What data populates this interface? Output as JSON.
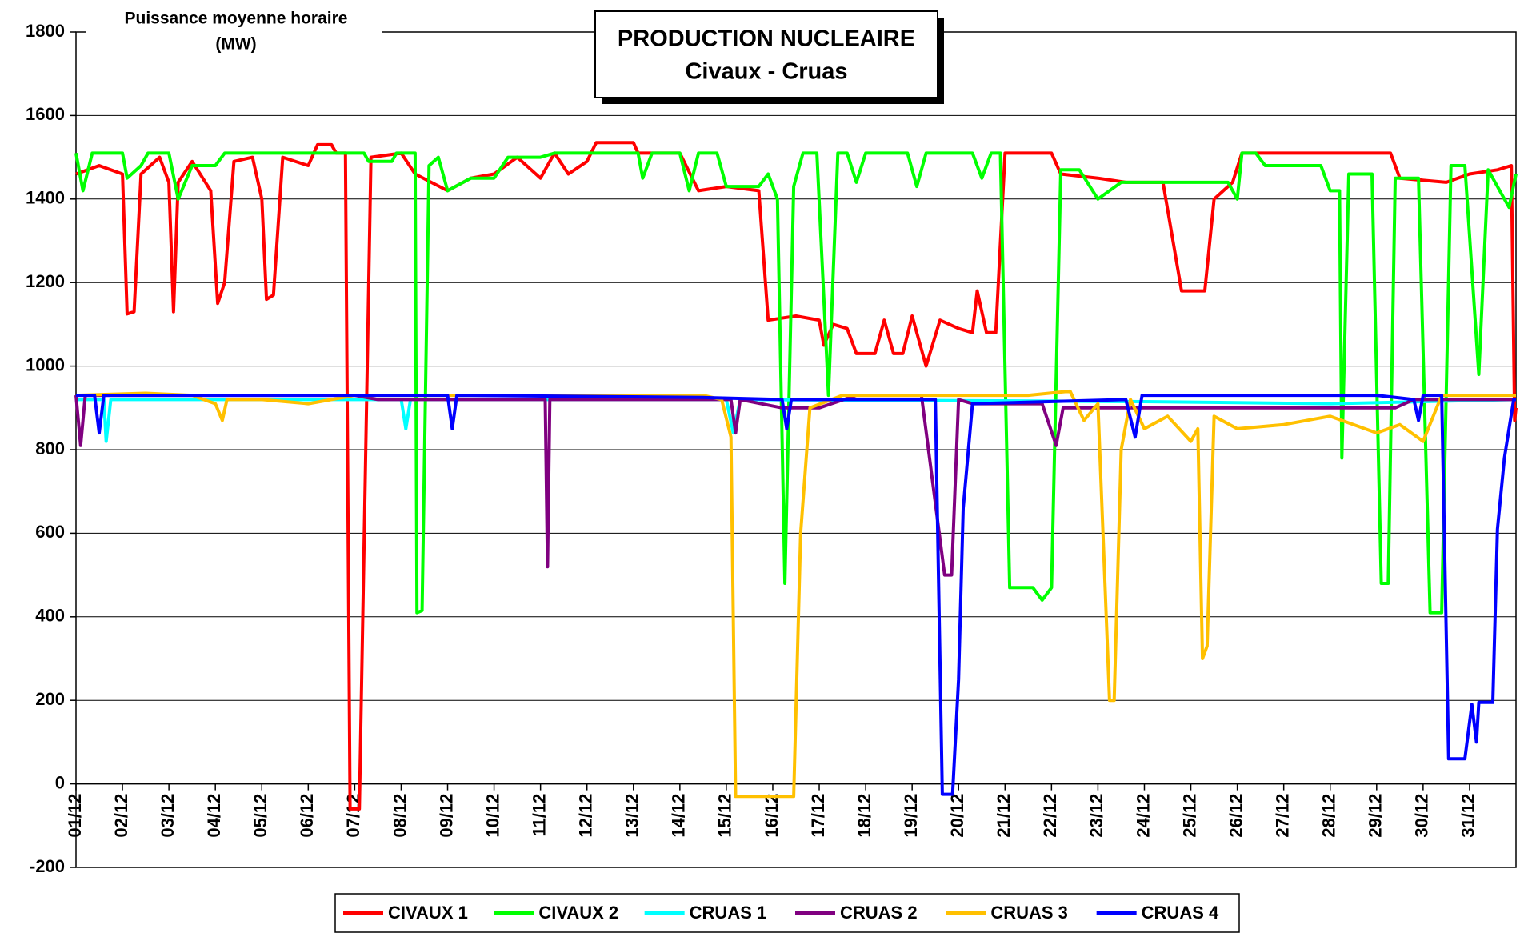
{
  "chart_data": {
    "type": "line",
    "title": "PRODUCTION NUCLEAIRE",
    "subtitle": "Civaux - Cruas",
    "y_label": [
      "Puissance moyenne horaire",
      "(MW)"
    ],
    "xlim": [
      1,
      32
    ],
    "xticks": [
      {
        "value": 1,
        "label": "01/12"
      },
      {
        "value": 2,
        "label": "02/12"
      },
      {
        "value": 3,
        "label": "03/12"
      },
      {
        "value": 4,
        "label": "04/12"
      },
      {
        "value": 5,
        "label": "05/12"
      },
      {
        "value": 6,
        "label": "06/12"
      },
      {
        "value": 7,
        "label": "07/12"
      },
      {
        "value": 8,
        "label": "08/12"
      },
      {
        "value": 9,
        "label": "09/12"
      },
      {
        "value": 10,
        "label": "10/12"
      },
      {
        "value": 11,
        "label": "11/12"
      },
      {
        "value": 12,
        "label": "12/12"
      },
      {
        "value": 13,
        "label": "13/12"
      },
      {
        "value": 14,
        "label": "14/12"
      },
      {
        "value": 15,
        "label": "15/12"
      },
      {
        "value": 16,
        "label": "16/12"
      },
      {
        "value": 17,
        "label": "17/12"
      },
      {
        "value": 18,
        "label": "18/12"
      },
      {
        "value": 19,
        "label": "19/12"
      },
      {
        "value": 20,
        "label": "20/12"
      },
      {
        "value": 21,
        "label": "21/12"
      },
      {
        "value": 22,
        "label": "22/12"
      },
      {
        "value": 23,
        "label": "23/12"
      },
      {
        "value": 24,
        "label": "24/12"
      },
      {
        "value": 25,
        "label": "25/12"
      },
      {
        "value": 26,
        "label": "26/12"
      },
      {
        "value": 27,
        "label": "27/12"
      },
      {
        "value": 28,
        "label": "28/12"
      },
      {
        "value": 29,
        "label": "29/12"
      },
      {
        "value": 30,
        "label": "30/12"
      },
      {
        "value": 31,
        "label": "31/12"
      }
    ],
    "ylim": [
      -200,
      1800
    ],
    "yticks": [
      -200,
      0,
      200,
      400,
      600,
      800,
      1000,
      1200,
      1400,
      1600,
      1800
    ],
    "grid": true,
    "legend": "bottom",
    "series": [
      {
        "name": "CIVAUX 1",
        "color": "#ff0000",
        "x": [
          1.0,
          1.5,
          2.0,
          2.1,
          2.25,
          2.4,
          2.8,
          3.0,
          3.1,
          3.2,
          3.5,
          3.9,
          4.05,
          4.2,
          4.4,
          4.8,
          5.0,
          5.1,
          5.25,
          5.45,
          6.0,
          6.2,
          6.5,
          6.6,
          6.8,
          6.9,
          7.1,
          7.35,
          8.0,
          8.3,
          9.0,
          9.5,
          10.0,
          10.5,
          11.0,
          11.3,
          11.6,
          12.0,
          12.2,
          13.0,
          13.1,
          14.0,
          14.4,
          15.0,
          15.7,
          15.9,
          16.5,
          17.0,
          17.1,
          17.3,
          17.6,
          17.8,
          18.2,
          18.4,
          18.6,
          18.8,
          19.0,
          19.3,
          19.6,
          20.0,
          20.3,
          20.4,
          20.6,
          20.8,
          21.0,
          22.0,
          22.2,
          23.0,
          23.6,
          24.4,
          24.8,
          25.3,
          25.5,
          25.9,
          26.1,
          29.3,
          29.5,
          30.5,
          31.0,
          31.6,
          31.9,
          31.97,
          32.0
        ],
        "values": [
          1460,
          1480,
          1460,
          1125,
          1130,
          1460,
          1500,
          1440,
          1130,
          1440,
          1490,
          1420,
          1150,
          1200,
          1490,
          1500,
          1400,
          1160,
          1170,
          1500,
          1480,
          1530,
          1530,
          1510,
          1510,
          -60,
          -60,
          1500,
          1510,
          1460,
          1420,
          1450,
          1460,
          1500,
          1450,
          1510,
          1460,
          1490,
          1535,
          1535,
          1510,
          1510,
          1420,
          1430,
          1420,
          1110,
          1120,
          1110,
          1050,
          1100,
          1090,
          1030,
          1030,
          1110,
          1030,
          1030,
          1120,
          1000,
          1110,
          1090,
          1080,
          1180,
          1080,
          1080,
          1510,
          1510,
          1460,
          1450,
          1440,
          1440,
          1180,
          1180,
          1400,
          1440,
          1510,
          1510,
          1450,
          1440,
          1460,
          1470,
          1480,
          870,
          900
        ]
      },
      {
        "name": "CIVAUX 2",
        "color": "#00ff00",
        "x": [
          1,
          1.15,
          1.35,
          2.0,
          2.1,
          2.4,
          2.55,
          3.0,
          3.2,
          3.5,
          4.0,
          4.2,
          7.2,
          7.3,
          7.8,
          7.9,
          8.3,
          8.34,
          8.45,
          8.6,
          8.8,
          9.0,
          9.5,
          10.0,
          10.3,
          11.0,
          11.3,
          13.1,
          13.2,
          13.4,
          14.0,
          14.2,
          14.4,
          14.8,
          15.0,
          15.7,
          15.9,
          16.1,
          16.26,
          16.45,
          16.65,
          16.95,
          17.2,
          17.4,
          17.6,
          17.8,
          18.0,
          18.9,
          19.1,
          19.3,
          20.3,
          20.5,
          20.7,
          20.9,
          21.1,
          21.6,
          21.8,
          22.0,
          22.2,
          22.6,
          23.0,
          23.5,
          25.8,
          26.0,
          26.1,
          26.4,
          26.6,
          27.8,
          28.0,
          28.2,
          28.25,
          28.4,
          28.9,
          29.1,
          29.25,
          29.4,
          29.9,
          30.15,
          30.4,
          30.6,
          30.9,
          31.2,
          31.4,
          31.85,
          32
        ],
        "values": [
          1510,
          1420,
          1510,
          1510,
          1450,
          1480,
          1510,
          1510,
          1400,
          1480,
          1480,
          1510,
          1510,
          1490,
          1490,
          1510,
          1510,
          410,
          415,
          1480,
          1500,
          1420,
          1450,
          1450,
          1500,
          1500,
          1510,
          1510,
          1450,
          1510,
          1510,
          1420,
          1510,
          1510,
          1430,
          1430,
          1460,
          1400,
          480,
          1430,
          1510,
          1510,
          930,
          1510,
          1510,
          1440,
          1510,
          1510,
          1430,
          1510,
          1510,
          1450,
          1510,
          1510,
          470,
          470,
          440,
          470,
          1470,
          1470,
          1400,
          1440,
          1440,
          1400,
          1510,
          1510,
          1480,
          1480,
          1420,
          1420,
          780,
          1460,
          1460,
          480,
          480,
          1450,
          1450,
          410,
          410,
          1480,
          1480,
          980,
          1470,
          1380,
          1460
        ]
      },
      {
        "name": "CRUAS 1",
        "color": "#00ffff",
        "x": [
          1,
          1.6,
          1.65,
          1.75,
          8.0,
          8.1,
          8.2,
          15.0,
          15.15,
          15.3,
          24,
          28,
          32
        ],
        "values": [
          920,
          920,
          820,
          920,
          920,
          850,
          920,
          920,
          840,
          920,
          915,
          910,
          920
        ]
      },
      {
        "name": "CRUAS 2",
        "color": "#800080",
        "x": [
          1,
          1.1,
          1.2,
          7.0,
          7.5,
          11.1,
          11.15,
          11.2,
          15.1,
          15.2,
          15.3,
          16.2,
          17.0,
          17.8,
          19.2,
          19.7,
          19.85,
          20.0,
          20.3,
          21.8,
          22.1,
          22.25,
          29.4,
          29.8,
          32
        ],
        "values": [
          930,
          810,
          930,
          930,
          920,
          920,
          520,
          920,
          920,
          840,
          920,
          900,
          900,
          930,
          930,
          500,
          500,
          920,
          910,
          910,
          810,
          900,
          900,
          920,
          920
        ]
      },
      {
        "name": "CRUAS 3",
        "color": "#ffc000",
        "x": [
          1,
          2.5,
          3.5,
          4.0,
          4.15,
          4.25,
          5,
          6,
          7,
          13,
          14.5,
          14.9,
          15.1,
          15.2,
          16.45,
          16.6,
          16.8,
          17.5,
          21.5,
          22.4,
          22.7,
          23.0,
          23.25,
          23.35,
          23.5,
          23.7,
          24.0,
          24.5,
          25.0,
          25.15,
          25.25,
          25.35,
          25.5,
          26.0,
          27.0,
          28.0,
          29.0,
          29.5,
          30.0,
          30.4,
          32
        ],
        "values": [
          930,
          935,
          930,
          910,
          870,
          920,
          920,
          910,
          930,
          930,
          930,
          920,
          830,
          -30,
          -30,
          600,
          900,
          930,
          930,
          940,
          870,
          910,
          200,
          200,
          800,
          920,
          850,
          880,
          820,
          850,
          300,
          330,
          880,
          850,
          860,
          880,
          840,
          860,
          820,
          930,
          930
        ]
      },
      {
        "name": "CRUAS 4",
        "color": "#0000ff",
        "x": [
          1,
          1.4,
          1.5,
          1.6,
          9.0,
          9.1,
          9.2,
          14.5,
          16.2,
          16.3,
          16.4,
          19.5,
          19.65,
          19.87,
          20.0,
          20.1,
          20.3,
          23.6,
          23.8,
          23.95,
          29.0,
          29.8,
          29.9,
          30.0,
          30.4,
          30.55,
          30.9,
          31.05,
          31.15,
          31.2,
          31.5,
          31.6,
          31.75,
          31.95,
          32
        ],
        "values": [
          930,
          930,
          840,
          930,
          930,
          850,
          930,
          925,
          920,
          850,
          920,
          920,
          -25,
          -25,
          250,
          660,
          910,
          920,
          830,
          930,
          930,
          920,
          870,
          930,
          930,
          60,
          60,
          190,
          100,
          195,
          195,
          610,
          780,
          920,
          920
        ]
      }
    ]
  }
}
